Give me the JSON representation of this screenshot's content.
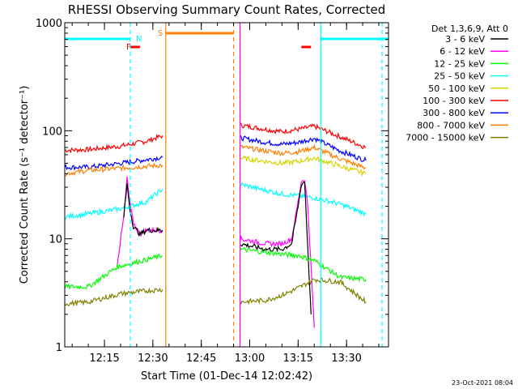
{
  "chart_data": {
    "type": "line",
    "title": "RHESSI Observing Summary Count Rates, Corrected",
    "xlabel": "Start Time (01-Dec-14 12:02:42)",
    "ylabel": "Corrected Count Rate (s⁻¹ detector⁻¹)",
    "x_axis": {
      "min": "12:02:42",
      "max": "13:43:00",
      "ticks": [
        "12:15",
        "12:30",
        "12:45",
        "13:00",
        "13:15",
        "13:30"
      ]
    },
    "y_axis": {
      "scale": "log",
      "min": 1,
      "max": 1000,
      "ticks": [
        "1",
        "10",
        "100",
        "1000"
      ]
    },
    "legend": {
      "position": "right",
      "header": "Det 1,3,6,9, Att 0",
      "entries": [
        {
          "label": "3 - 6 keV",
          "color": "#000000"
        },
        {
          "label": "6 - 12 keV",
          "color": "#ff00ff"
        },
        {
          "label": "12 - 25 keV",
          "color": "#00ff00"
        },
        {
          "label": "25 - 50 keV",
          "color": "#00ffff"
        },
        {
          "label": "50 - 100 keV",
          "color": "#d4d400"
        },
        {
          "label": "100 - 300 keV",
          "color": "#ff0000"
        },
        {
          "label": "300 - 800 keV",
          "color": "#0000ff"
        },
        {
          "label": "800 - 7000 keV",
          "color": "#ff8000"
        },
        {
          "label": "7000 - 15000 keV",
          "color": "#808000"
        }
      ]
    },
    "flags": [
      {
        "label": "N",
        "color": "#00ffff"
      },
      {
        "label": "F",
        "color": "#ff0000"
      },
      {
        "label": "S",
        "color": "#ff8000"
      }
    ],
    "series": [
      {
        "color": "#ff0000",
        "segments": [
          {
            "x": [
              "12:02:42",
              "12:10",
              "12:20",
              "12:28",
              "12:33"
            ],
            "y": [
              66,
              67,
              72,
              80,
              90
            ]
          },
          {
            "x": [
              "12:57",
              "13:05",
              "13:10",
              "13:15",
              "13:20",
              "13:28",
              "13:36"
            ],
            "y": [
              113,
              103,
              98,
              103,
              110,
              88,
              70
            ]
          }
        ]
      },
      {
        "color": "#0000ff",
        "segments": [
          {
            "x": [
              "12:02:42",
              "12:10",
              "12:20",
              "12:28",
              "12:33"
            ],
            "y": [
              46,
              46,
              50,
              54,
              57
            ]
          },
          {
            "x": [
              "12:57",
              "13:05",
              "13:10",
              "13:15",
              "13:20",
              "13:28",
              "13:36"
            ],
            "y": [
              86,
              78,
              75,
              78,
              85,
              65,
              53
            ]
          }
        ]
      },
      {
        "color": "#ff8000",
        "segments": [
          {
            "x": [
              "12:02:42",
              "12:10",
              "12:20",
              "12:28",
              "12:33"
            ],
            "y": [
              40,
              43,
              45,
              47,
              48
            ]
          },
          {
            "x": [
              "12:57",
              "13:05",
              "13:10",
              "13:15",
              "13:20",
              "13:28",
              "13:36"
            ],
            "y": [
              71,
              65,
              62,
              64,
              70,
              55,
              45
            ]
          }
        ]
      },
      {
        "color": "#d4d400",
        "segments": [
          {
            "x": [
              "12:57",
              "13:05",
              "13:10",
              "13:15",
              "13:20",
              "13:28",
              "13:36"
            ],
            "y": [
              56,
              52,
              50,
              52,
              56,
              47,
              40
            ]
          }
        ]
      },
      {
        "color": "#00ffff",
        "segments": [
          {
            "x": [
              "12:02:42",
              "12:10",
              "12:20",
              "12:28",
              "12:33"
            ],
            "y": [
              16,
              17,
              19,
              22,
              29
            ]
          },
          {
            "x": [
              "12:57",
              "13:05",
              "13:10",
              "13:15",
              "13:20",
              "13:28",
              "13:36"
            ],
            "y": [
              32,
              28,
              26,
              25,
              24,
              21,
              17
            ]
          }
        ]
      },
      {
        "color": "#ff00ff",
        "segments": [
          {
            "x": [
              "12:19",
              "12:21",
              "12:22",
              "12:23",
              "12:24",
              "12:26",
              "12:28",
              "12:33"
            ],
            "y": [
              6,
              16,
              36,
              20,
              14,
              11,
              12,
              12
            ]
          },
          {
            "x": [
              "12:57",
              "13:05",
              "13:10",
              "13:13",
              "13:15",
              "13:16",
              "13:17",
              "13:18",
              "13:20"
            ],
            "y": [
              10,
              9,
              9,
              10,
              22,
              34,
              36,
              20,
              1.5
            ]
          }
        ]
      },
      {
        "color": "#000000",
        "segments": [
          {
            "x": [
              "12:21",
              "12:22",
              "12:23",
              "12:24",
              "12:26",
              "12:28",
              "12:33"
            ],
            "y": [
              16,
              32,
              18,
              13,
              11,
              12,
              12
            ]
          },
          {
            "x": [
              "12:57",
              "13:05",
              "13:10",
              "13:13",
              "13:15",
              "13:16",
              "13:17",
              "13:19"
            ],
            "y": [
              9,
              8,
              8,
              9,
              20,
              32,
              34,
              2
            ]
          }
        ]
      },
      {
        "color": "#00ff00",
        "segments": [
          {
            "x": [
              "12:02:42",
              "12:10",
              "12:19",
              "12:24",
              "12:28",
              "12:33"
            ],
            "y": [
              3.6,
              3.6,
              5.5,
              6,
              6.4,
              7
            ]
          },
          {
            "x": [
              "12:57",
              "13:05",
              "13:10",
              "13:15",
              "13:20",
              "13:28",
              "13:36"
            ],
            "y": [
              8,
              7.5,
              7.2,
              7,
              6.3,
              4.4,
              4.2
            ]
          }
        ]
      },
      {
        "color": "#808000",
        "segments": [
          {
            "x": [
              "12:02:42",
              "12:10",
              "12:20",
              "12:28",
              "12:33"
            ],
            "y": [
              2.5,
              2.6,
              3.1,
              3.3,
              3.4
            ]
          },
          {
            "x": [
              "12:57",
              "13:05",
              "13:10",
              "13:15",
              "13:20",
              "13:28",
              "13:36"
            ],
            "y": [
              2.6,
              2.7,
              3.0,
              3.5,
              4.2,
              4.0,
              2.6
            ]
          }
        ]
      }
    ],
    "annotations": [
      {
        "text": "23-Oct-2021 08:04",
        "position": "bottom-right"
      }
    ]
  }
}
